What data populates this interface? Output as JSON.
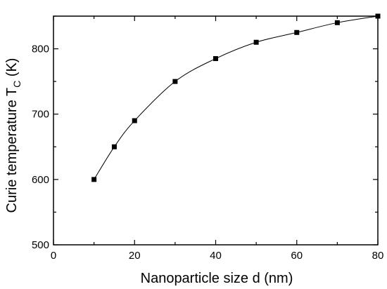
{
  "chart_data": {
    "type": "line",
    "title": "",
    "xlabel": "Nanoparticle size d (nm)",
    "ylabel_main": "Curie temperature T",
    "ylabel_sub": "C",
    "ylabel_unit": " (K)",
    "xlim": [
      0,
      80
    ],
    "ylim": [
      500,
      850
    ],
    "x_ticks": [
      0,
      10,
      20,
      30,
      40,
      50,
      60,
      70,
      80
    ],
    "x_tick_labels": [
      "0",
      "20",
      "40",
      "60",
      "80"
    ],
    "x_labeled_ticks": [
      0,
      20,
      40,
      60,
      80
    ],
    "y_ticks": [
      500,
      550,
      600,
      650,
      700,
      750,
      800,
      850
    ],
    "y_tick_labels": [
      "500",
      "600",
      "700",
      "800"
    ],
    "y_labeled_ticks": [
      500,
      600,
      700,
      800
    ],
    "grid": false,
    "marker": "square",
    "line_color": "#000000",
    "series": [
      {
        "x": [
          10,
          15,
          20,
          30,
          40,
          50,
          60,
          70,
          80
        ],
        "y": [
          600,
          650,
          690,
          750,
          785,
          810,
          825,
          840,
          850
        ]
      }
    ]
  }
}
